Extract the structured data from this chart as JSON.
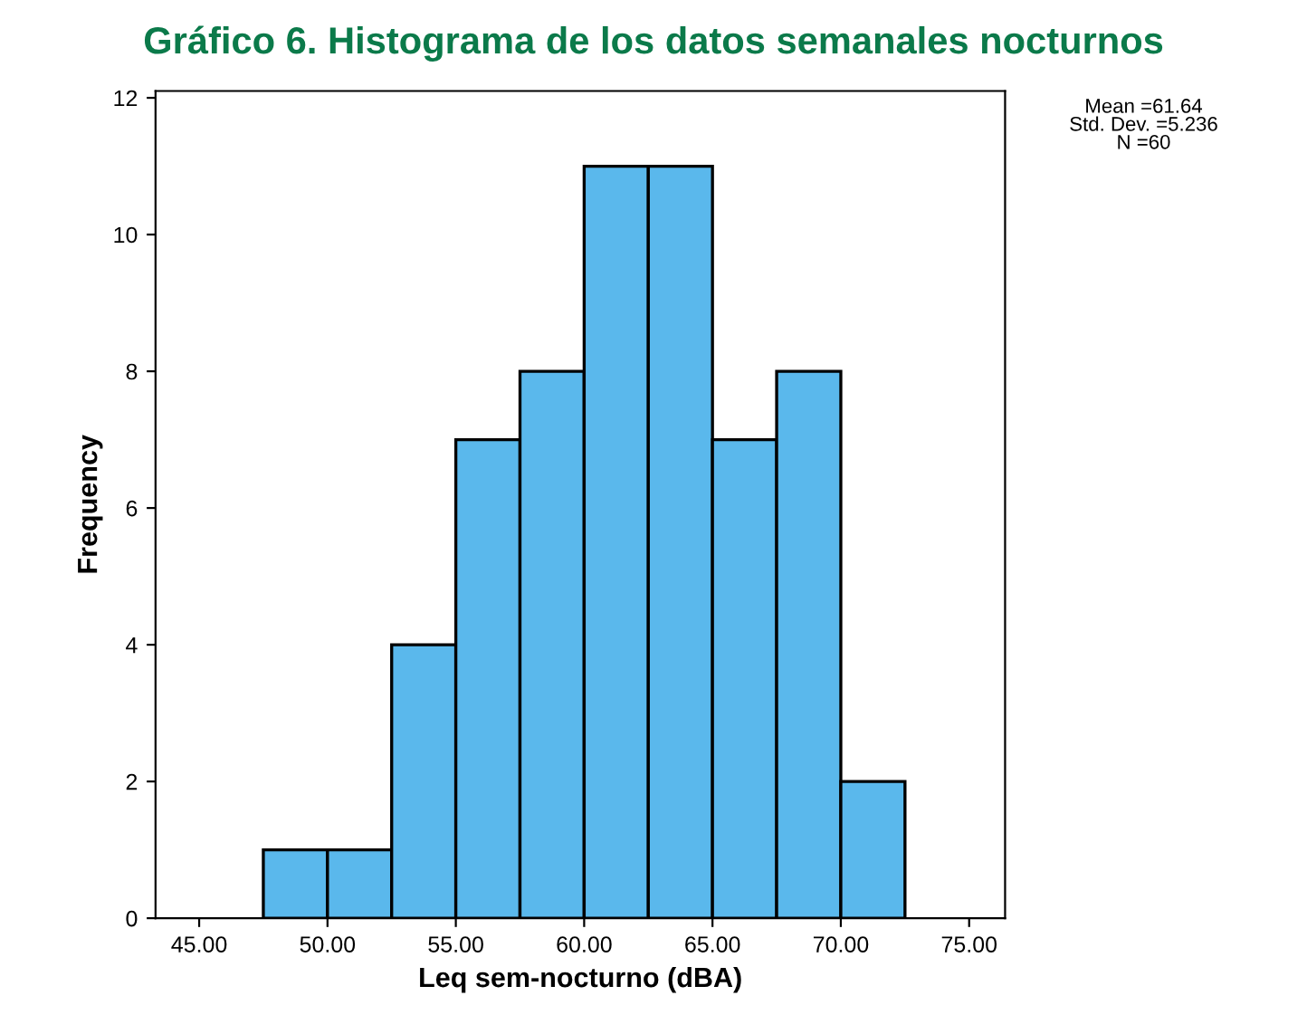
{
  "chart_data": {
    "type": "histogram",
    "title": "Gráfico 6. Histograma de los datos semanales nocturnos",
    "xlabel": "Leq sem-nocturno (dBA)",
    "ylabel": "Frequency",
    "bins": [
      47.5,
      50,
      52.5,
      55,
      57.5,
      60,
      62.5,
      65,
      67.5,
      70,
      72.5
    ],
    "values": [
      1,
      1,
      4,
      7,
      8,
      11,
      11,
      7,
      8,
      2
    ],
    "color": "#5ab8ec",
    "xlim": [
      43.3,
      76.4
    ],
    "ylim": [
      0,
      12.1
    ],
    "xticks": [
      {
        "value": 45,
        "label": "45.00"
      },
      {
        "value": 50,
        "label": "50.00"
      },
      {
        "value": 55,
        "label": "55.00"
      },
      {
        "value": 60,
        "label": "60.00"
      },
      {
        "value": 65,
        "label": "65.00"
      },
      {
        "value": 70,
        "label": "70.00"
      },
      {
        "value": 75,
        "label": "75.00"
      }
    ],
    "yticks": [
      0,
      2,
      4,
      6,
      8,
      10,
      12
    ],
    "grid": false,
    "legend": false,
    "annotations": [
      "Mean =61.64\nStd. Dev. =5.236\nN =60"
    ]
  }
}
